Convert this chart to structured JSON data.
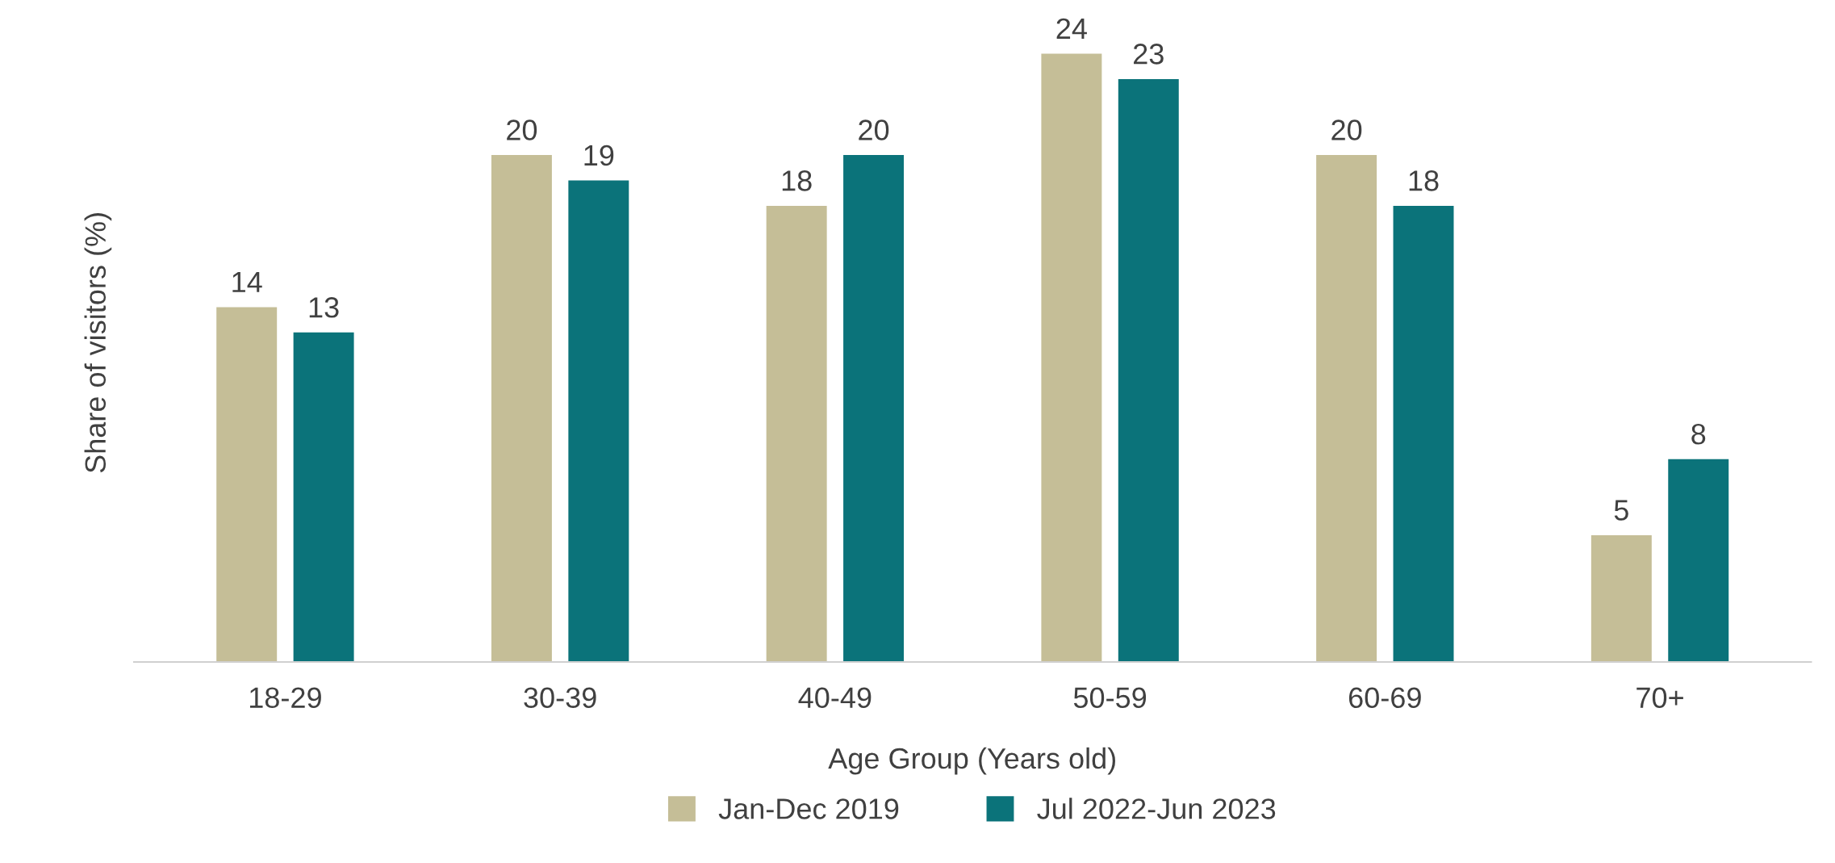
{
  "chart_data": {
    "type": "bar",
    "xlabel": "Age Group (Years old)",
    "ylabel": "Share of visitors (%)",
    "categories": [
      "18-29",
      "30-39",
      "40-49",
      "50-59",
      "60-69",
      "70+"
    ],
    "series": [
      {
        "name": "Jan-Dec 2019",
        "color": "#c5be97",
        "values": [
          14,
          20,
          18,
          24,
          20,
          5
        ]
      },
      {
        "name": "Jul 2022-Jun 2023",
        "color": "#0b737a",
        "values": [
          13,
          19,
          20,
          23,
          18,
          8
        ]
      }
    ],
    "data_labels": true,
    "grid": false,
    "legend": "bottom"
  }
}
